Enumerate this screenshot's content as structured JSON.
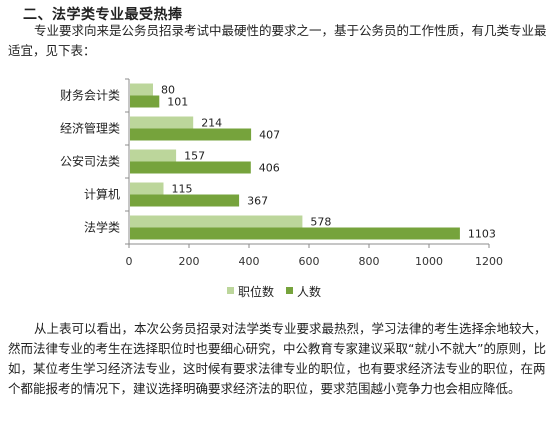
{
  "article": {
    "heading": "二、法学类专业最受热捧",
    "intro": "专业要求向来是公务员招录考试中最硬性的要求之一，基于公务员的工作性质，有几类专业最适宜，见下表：",
    "outro": "从上表可以看出，本次公务员招录对法学类专业要求最热烈，学习法律的考生选择余地较大，然而法律专业的考生在选择职位时也要细心研究，中公教育专家建议采取“就小不就大”的原则，比如，某位考生学习经济法专业，这时候有要求法律专业的职位，也有要求经济法专业的职位，在两个都能报考的情况下，建议选择明确要求经济法的职位，要求范围越小竞争力也会相应降低。"
  },
  "chart_data": {
    "type": "bar",
    "orientation": "horizontal",
    "categories": [
      "财务会计类",
      "经济管理类",
      "公安司法类",
      "计算机",
      "法学类"
    ],
    "series": [
      {
        "name": "职位数",
        "values": [
          80,
          214,
          157,
          115,
          578
        ],
        "color": "#bcd69b"
      },
      {
        "name": "人数",
        "values": [
          101,
          407,
          406,
          367,
          1103
        ],
        "color": "#76a33c"
      }
    ],
    "xlim": [
      0,
      1200
    ],
    "xticks": [
      0,
      200,
      400,
      600,
      800,
      1000,
      1200
    ],
    "grid": false,
    "legend_position": "bottom",
    "title": "",
    "xlabel": "",
    "ylabel": ""
  }
}
